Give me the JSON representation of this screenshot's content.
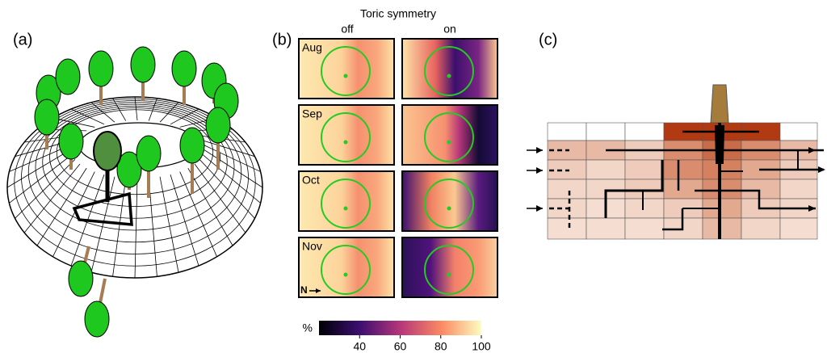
{
  "panels": {
    "a": {
      "label": "(a)"
    },
    "b": {
      "label": "(b)",
      "title": "Toric symmetry",
      "columns": [
        "off",
        "on"
      ],
      "rows": [
        "Aug",
        "Sep",
        "Oct",
        "Nov"
      ],
      "north": "N",
      "colorbar": {
        "label": "%",
        "range": [
          20,
          100
        ],
        "ticks": [
          40,
          60,
          80,
          100
        ]
      }
    },
    "c": {
      "label": "(c)"
    }
  }
}
